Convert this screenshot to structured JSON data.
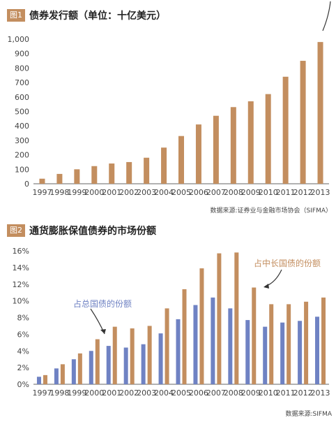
{
  "chart_data": [
    {
      "type": "bar",
      "badge": "图1",
      "title": "债券发行额（单位：十亿美元）",
      "source": "数据来源:证券业与金融市场协会（SIFMA）",
      "categories": [
        "1997",
        "1998",
        "1999",
        "2000",
        "2001",
        "2002",
        "2003",
        "2004",
        "2005",
        "2006",
        "2007",
        "2008",
        "2009",
        "2010",
        "2011",
        "2012",
        "2013"
      ],
      "series": [
        {
          "values": [
            35,
            68,
            100,
            122,
            140,
            150,
            180,
            250,
            330,
            410,
            470,
            530,
            570,
            620,
            740,
            850,
            980
          ],
          "color": "#c38e5f"
        }
      ],
      "yticks": [
        "0",
        "100",
        "200",
        "300",
        "400",
        "500",
        "600",
        "700",
        "800",
        "900",
        "1,000"
      ],
      "ylim": [
        0,
        1000
      ],
      "grid": false
    },
    {
      "type": "bar",
      "badge": "图2",
      "title": "通货膨胀保值债券的市场份额",
      "source": "数据来源:SIFMA",
      "categories": [
        "1997",
        "1998",
        "1999",
        "2000",
        "2001",
        "2002",
        "2003",
        "2004",
        "2005",
        "2006",
        "2007",
        "2008",
        "2009",
        "2010",
        "2011",
        "2012",
        "2013"
      ],
      "series": [
        {
          "name": "占总国债的份额",
          "values": [
            0.9,
            1.9,
            3.0,
            4.0,
            4.6,
            4.4,
            4.8,
            6.1,
            7.8,
            9.5,
            10.4,
            9.1,
            7.7,
            6.9,
            7.4,
            7.6,
            8.1
          ],
          "color": "#6f82c3"
        },
        {
          "name": "占中长国债的份额",
          "values": [
            1.1,
            2.4,
            3.7,
            5.4,
            6.9,
            6.7,
            7.0,
            9.1,
            11.4,
            13.9,
            15.7,
            15.8,
            11.6,
            9.6,
            9.6,
            9.9,
            10.4
          ],
          "color": "#c38e5f"
        }
      ],
      "yticks": [
        "0%",
        "2%",
        "4%",
        "6%",
        "8%",
        "10%",
        "12%",
        "14%",
        "16%"
      ],
      "ylim": [
        0,
        16
      ],
      "grid": false
    }
  ]
}
